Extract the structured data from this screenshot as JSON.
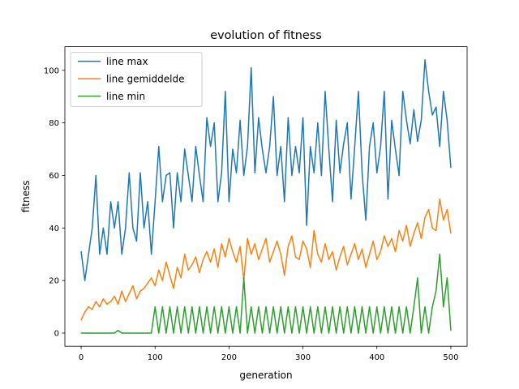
{
  "chart_data": {
    "type": "line",
    "title": "evolution of fitness",
    "xlabel": "generation",
    "ylabel": "fitness",
    "xlim": [
      -22,
      522
    ],
    "ylim": [
      -5,
      109
    ],
    "xticks": [
      0,
      100,
      200,
      300,
      400,
      500
    ],
    "yticks": [
      0,
      20,
      40,
      60,
      80,
      100
    ],
    "grid": false,
    "legend": "upper-left",
    "series": [
      {
        "name": "line max",
        "color": "#1f77b4",
        "x": [
          0,
          5,
          10,
          15,
          20,
          25,
          30,
          35,
          40,
          45,
          50,
          55,
          60,
          65,
          70,
          75,
          80,
          85,
          90,
          95,
          100,
          105,
          110,
          115,
          120,
          125,
          130,
          135,
          140,
          145,
          150,
          155,
          160,
          165,
          170,
          175,
          180,
          185,
          190,
          195,
          200,
          205,
          210,
          215,
          220,
          225,
          230,
          235,
          240,
          245,
          250,
          255,
          260,
          265,
          270,
          275,
          280,
          285,
          290,
          295,
          300,
          305,
          310,
          315,
          320,
          325,
          330,
          335,
          340,
          345,
          350,
          355,
          360,
          365,
          370,
          375,
          380,
          385,
          390,
          395,
          400,
          405,
          410,
          415,
          420,
          425,
          430,
          435,
          440,
          445,
          450,
          455,
          460,
          465,
          470,
          475,
          480,
          485,
          490,
          495,
          500
        ],
        "y": [
          31,
          20,
          30,
          40,
          60,
          30,
          40,
          30,
          50,
          40,
          50,
          30,
          40,
          61,
          40,
          35,
          61,
          40,
          50,
          30,
          50,
          71,
          50,
          60,
          61,
          40,
          61,
          50,
          70,
          60,
          50,
          71,
          60,
          50,
          82,
          71,
          80,
          50,
          61,
          92,
          50,
          70,
          61,
          81,
          60,
          71,
          101,
          61,
          82,
          70,
          61,
          71,
          90,
          60,
          71,
          50,
          82,
          60,
          71,
          61,
          82,
          41,
          71,
          61,
          80,
          60,
          92,
          70,
          50,
          81,
          61,
          72,
          80,
          51,
          71,
          92,
          61,
          43,
          71,
          80,
          61,
          71,
          92,
          51,
          81,
          70,
          60,
          92,
          81,
          72,
          85,
          73,
          81,
          104,
          92,
          83,
          86,
          71,
          92,
          81,
          63
        ]
      },
      {
        "name": "line gemiddelde",
        "color": "#ff7f0e",
        "x": [
          0,
          5,
          10,
          15,
          20,
          25,
          30,
          35,
          40,
          45,
          50,
          55,
          60,
          65,
          70,
          75,
          80,
          85,
          90,
          95,
          100,
          105,
          110,
          115,
          120,
          125,
          130,
          135,
          140,
          145,
          150,
          155,
          160,
          165,
          170,
          175,
          180,
          185,
          190,
          195,
          200,
          205,
          210,
          215,
          220,
          225,
          230,
          235,
          240,
          245,
          250,
          255,
          260,
          265,
          270,
          275,
          280,
          285,
          290,
          295,
          300,
          305,
          310,
          315,
          320,
          325,
          330,
          335,
          340,
          345,
          350,
          355,
          360,
          365,
          370,
          375,
          380,
          385,
          390,
          395,
          400,
          405,
          410,
          415,
          420,
          425,
          430,
          435,
          440,
          445,
          450,
          455,
          460,
          465,
          470,
          475,
          480,
          485,
          490,
          495,
          500
        ],
        "y": [
          5,
          8,
          10,
          9,
          12,
          10,
          13,
          11,
          12,
          14,
          11,
          16,
          12,
          15,
          18,
          13,
          16,
          17,
          19,
          21,
          18,
          24,
          20,
          27,
          22,
          17,
          25,
          21,
          30,
          24,
          26,
          29,
          23,
          28,
          31,
          27,
          32,
          25,
          34,
          29,
          36,
          31,
          27,
          33,
          20,
          36,
          30,
          34,
          28,
          32,
          36,
          27,
          31,
          35,
          30,
          22,
          33,
          37,
          29,
          28,
          35,
          32,
          25,
          39,
          30,
          27,
          34,
          28,
          31,
          24,
          29,
          33,
          26,
          30,
          34,
          28,
          32,
          25,
          30,
          35,
          28,
          31,
          37,
          33,
          36,
          31,
          39,
          35,
          41,
          33,
          38,
          42,
          36,
          44,
          47,
          40,
          39,
          51,
          43,
          47,
          38
        ]
      },
      {
        "name": "line min",
        "color": "#2ca02c",
        "x": [
          0,
          5,
          10,
          15,
          20,
          25,
          30,
          35,
          40,
          45,
          50,
          55,
          60,
          65,
          70,
          75,
          80,
          85,
          90,
          95,
          100,
          105,
          110,
          115,
          120,
          125,
          130,
          135,
          140,
          145,
          150,
          155,
          160,
          165,
          170,
          175,
          180,
          185,
          190,
          195,
          200,
          205,
          210,
          215,
          220,
          225,
          230,
          235,
          240,
          245,
          250,
          255,
          260,
          265,
          270,
          275,
          280,
          285,
          290,
          295,
          300,
          305,
          310,
          315,
          320,
          325,
          330,
          335,
          340,
          345,
          350,
          355,
          360,
          365,
          370,
          375,
          380,
          385,
          390,
          395,
          400,
          405,
          410,
          415,
          420,
          425,
          430,
          435,
          440,
          445,
          450,
          455,
          460,
          465,
          470,
          475,
          480,
          485,
          490,
          495,
          500
        ],
        "y": [
          0,
          0,
          0,
          0,
          0,
          0,
          0,
          0,
          0,
          0,
          1,
          0,
          0,
          0,
          0,
          0,
          0,
          0,
          0,
          0,
          10,
          0,
          10,
          0,
          10,
          0,
          10,
          0,
          10,
          0,
          10,
          0,
          10,
          0,
          10,
          0,
          10,
          0,
          10,
          0,
          10,
          0,
          10,
          0,
          21,
          0,
          10,
          0,
          10,
          0,
          10,
          0,
          10,
          0,
          10,
          0,
          10,
          0,
          10,
          0,
          10,
          0,
          10,
          0,
          10,
          0,
          10,
          0,
          10,
          0,
          10,
          0,
          10,
          0,
          10,
          0,
          10,
          0,
          10,
          0,
          10,
          0,
          10,
          0,
          10,
          0,
          10,
          0,
          10,
          0,
          10,
          21,
          0,
          10,
          0,
          10,
          16,
          30,
          10,
          21,
          1
        ]
      }
    ]
  }
}
